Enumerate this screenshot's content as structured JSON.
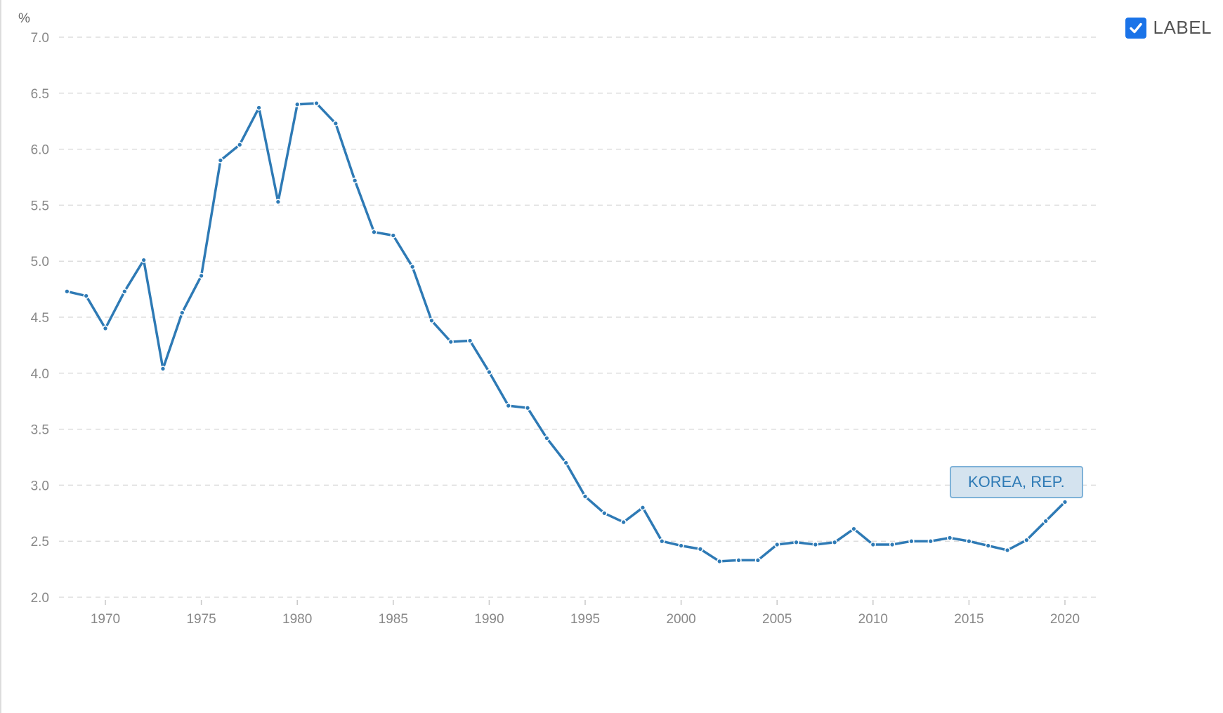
{
  "legend": {
    "label": "LABEL",
    "checked": true,
    "checkbox_color": "#1a73e8"
  },
  "colors": {
    "line": "#2e7ab5",
    "grid": "#dddddd",
    "tick": "#888888"
  },
  "chart_data": {
    "type": "line",
    "title": "",
    "ylabel": "%",
    "xlabel": "",
    "ylim": [
      2.0,
      7.0
    ],
    "yticks": [
      "2.0",
      "2.5",
      "3.0",
      "3.5",
      "4.0",
      "4.5",
      "5.0",
      "5.5",
      "6.0",
      "6.5",
      "7.0"
    ],
    "xticks": [
      "1970",
      "1975",
      "1980",
      "1985",
      "1990",
      "1995",
      "2000",
      "2005",
      "2010",
      "2015",
      "2020"
    ],
    "grid": "horizontal dashed",
    "series": [
      {
        "name": "KOREA, REP.",
        "x": [
          1968,
          1969,
          1970,
          1971,
          1972,
          1973,
          1974,
          1975,
          1976,
          1977,
          1978,
          1979,
          1980,
          1981,
          1982,
          1983,
          1984,
          1985,
          1986,
          1987,
          1988,
          1989,
          1990,
          1991,
          1992,
          1993,
          1994,
          1995,
          1996,
          1997,
          1998,
          1999,
          2000,
          2001,
          2002,
          2003,
          2004,
          2005,
          2006,
          2007,
          2008,
          2009,
          2010,
          2011,
          2012,
          2013,
          2014,
          2015,
          2016,
          2017,
          2018,
          2019,
          2020
        ],
        "values": [
          4.73,
          4.69,
          4.4,
          4.73,
          5.01,
          4.04,
          4.54,
          4.87,
          5.9,
          6.04,
          6.37,
          5.53,
          6.4,
          6.41,
          6.23,
          5.72,
          5.26,
          5.23,
          4.95,
          4.47,
          4.28,
          4.29,
          4.01,
          3.71,
          3.69,
          3.42,
          3.2,
          2.9,
          2.75,
          2.67,
          2.8,
          2.5,
          2.46,
          2.43,
          2.32,
          2.33,
          2.33,
          2.47,
          2.49,
          2.47,
          2.49,
          2.61,
          2.47,
          2.47,
          2.5,
          2.5,
          2.53,
          2.5,
          2.46,
          2.42,
          2.51,
          2.68,
          2.85
        ]
      }
    ]
  }
}
